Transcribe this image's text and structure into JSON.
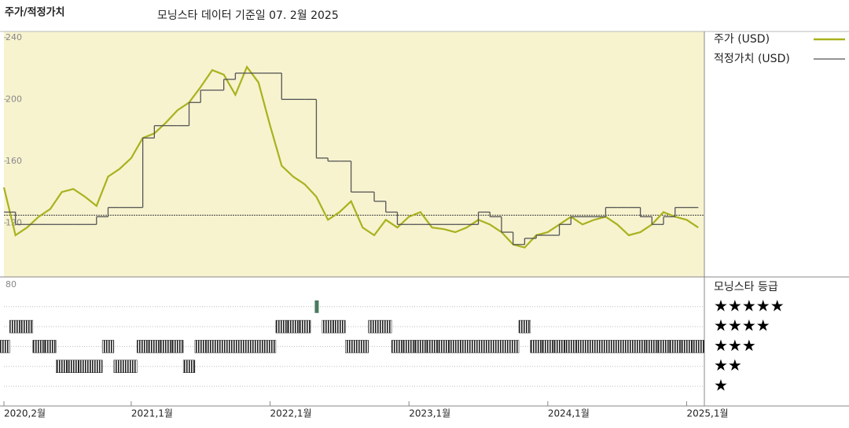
{
  "chart_data": {
    "type": "line",
    "title": "주가/적정가치",
    "subtitle": "모닝스타 데이터 기준일 07. 2월 2025",
    "x": [
      "2020-02",
      "2020-03",
      "2020-04",
      "2020-05",
      "2020-06",
      "2020-07",
      "2020-08",
      "2020-09",
      "2020-10",
      "2020-11",
      "2020-12",
      "2021-01",
      "2021-02",
      "2021-03",
      "2021-04",
      "2021-05",
      "2021-06",
      "2021-07",
      "2021-08",
      "2021-09",
      "2021-10",
      "2021-11",
      "2021-12",
      "2022-01",
      "2022-02",
      "2022-03",
      "2022-04",
      "2022-05",
      "2022-06",
      "2022-07",
      "2022-08",
      "2022-09",
      "2022-10",
      "2022-11",
      "2022-12",
      "2023-01",
      "2023-02",
      "2023-03",
      "2023-04",
      "2023-05",
      "2023-06",
      "2023-07",
      "2023-08",
      "2023-09",
      "2023-10",
      "2023-11",
      "2023-12",
      "2024-01",
      "2024-02",
      "2024-03",
      "2024-04",
      "2024-05",
      "2024-06",
      "2024-07",
      "2024-08",
      "2024-09",
      "2024-10",
      "2024-11",
      "2024-12",
      "2025-01",
      "2025-02"
    ],
    "series": [
      {
        "name": "주가 (USD)",
        "color": "#a9b21e",
        "values": [
          143,
          112,
          117,
          124,
          129,
          140,
          142,
          137,
          131,
          150,
          155,
          162,
          175,
          178,
          185,
          193,
          198,
          208,
          219,
          216,
          203,
          221,
          211,
          183,
          157,
          150,
          145,
          137,
          122,
          127,
          134,
          117,
          112,
          122,
          117,
          124,
          127,
          117,
          116,
          114,
          117,
          122,
          119,
          114,
          106,
          104,
          112,
          114,
          119,
          124,
          119,
          122,
          124,
          119,
          112,
          114,
          119,
          127,
          124,
          122,
          117
        ]
      },
      {
        "name": "적정가치 (USD)",
        "color": "#555555",
        "step": true,
        "values": [
          127,
          119,
          119,
          119,
          119,
          119,
          119,
          119,
          124,
          130,
          130,
          130,
          175,
          183,
          183,
          183,
          198,
          206,
          206,
          213,
          217,
          217,
          217,
          217,
          200,
          200,
          200,
          162,
          160,
          160,
          140,
          140,
          134,
          127,
          119,
          119,
          119,
          119,
          119,
          119,
          119,
          127,
          124,
          114,
          106,
          110,
          112,
          112,
          119,
          124,
          124,
          124,
          130,
          130,
          130,
          124,
          119,
          124,
          130,
          130,
          130
        ]
      }
    ],
    "ylim": [
      85,
      244
    ],
    "yticks": [
      120,
      160,
      200,
      240
    ],
    "reference_line": 125,
    "xticks": [
      {
        "value": "2020-02",
        "label": "2020,2월"
      },
      {
        "value": "2021-01",
        "label": "2021,1월"
      },
      {
        "value": "2022-01",
        "label": "2022,1월"
      },
      {
        "value": "2023-01",
        "label": "2023,1월"
      },
      {
        "value": "2024-01",
        "label": "2024,1월"
      },
      {
        "value": "2025-01",
        "label": "2025,1월"
      }
    ],
    "rating": {
      "title": "모닝스타 등급",
      "panel_label": "80",
      "color": "#222222",
      "top_color": "#4a7a60",
      "levels": [
        {
          "value": 5,
          "label": "★★★★★"
        },
        {
          "value": 4,
          "label": "★★★★"
        },
        {
          "value": 3,
          "label": "★★★"
        },
        {
          "value": 2,
          "label": "★★"
        },
        {
          "value": 1,
          "label": "★"
        }
      ],
      "values": [
        3,
        4,
        4,
        3,
        3,
        2,
        2,
        2,
        2,
        3,
        2,
        2,
        3,
        3,
        3,
        3,
        2,
        3,
        3,
        3,
        3,
        3,
        3,
        3,
        4,
        4,
        4,
        5,
        4,
        4,
        3,
        3,
        4,
        4,
        3,
        3,
        3,
        3,
        3,
        3,
        3,
        3,
        3,
        3,
        3,
        4,
        3,
        3,
        3,
        3,
        3,
        3,
        3,
        3,
        3,
        3,
        3,
        3,
        3,
        3,
        3
      ]
    }
  }
}
